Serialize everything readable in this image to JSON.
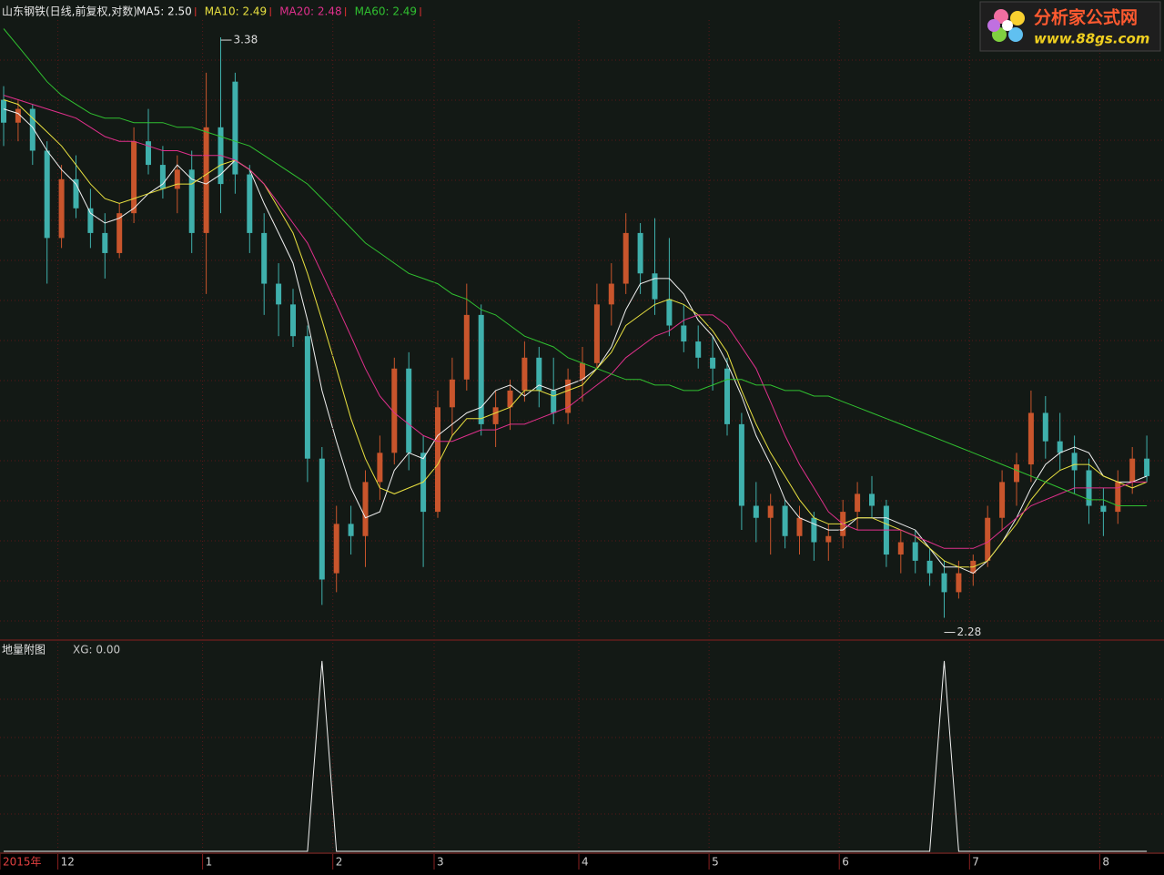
{
  "chart_data": [
    {
      "type": "candlestick",
      "title": "山东钢铁(日线,前复权,对数)",
      "log": true,
      "ylim": [
        2.25,
        3.42
      ],
      "up_color": "#c8552c",
      "down_color": "#3fb0ac",
      "categories": [
        "2015年",
        null,
        null,
        null,
        "12",
        null,
        null,
        null,
        null,
        null,
        null,
        null,
        null,
        null,
        "1",
        null,
        null,
        null,
        null,
        null,
        null,
        null,
        null,
        "2",
        null,
        null,
        null,
        null,
        null,
        null,
        "3",
        null,
        null,
        null,
        null,
        null,
        null,
        null,
        null,
        null,
        "4",
        null,
        null,
        null,
        null,
        null,
        null,
        null,
        null,
        "5",
        null,
        null,
        null,
        null,
        null,
        null,
        null,
        null,
        "6",
        null,
        null,
        null,
        null,
        null,
        null,
        null,
        null,
        "7",
        null,
        null,
        null,
        null,
        null,
        null,
        null,
        null,
        "8",
        null,
        null,
        null
      ],
      "open": [
        3.24,
        3.19,
        3.22,
        3.13,
        2.95,
        3.07,
        3.01,
        2.96,
        2.92,
        3.0,
        3.15,
        3.1,
        3.05,
        3.09,
        2.96,
        3.18,
        3.28,
        3.08,
        2.96,
        2.86,
        2.82,
        2.76,
        2.54,
        2.35,
        2.43,
        2.41,
        2.5,
        2.55,
        2.7,
        2.55,
        2.45,
        2.63,
        2.68,
        2.8,
        2.6,
        2.63,
        2.66,
        2.72,
        2.66,
        2.62,
        2.68,
        2.71,
        2.82,
        2.86,
        2.96,
        2.88,
        2.83,
        2.78,
        2.75,
        2.72,
        2.7,
        2.6,
        2.46,
        2.44,
        2.46,
        2.41,
        2.44,
        2.4,
        2.41,
        2.45,
        2.48,
        2.46,
        2.38,
        2.4,
        2.37,
        2.35,
        2.32,
        2.35,
        2.37,
        2.44,
        2.5,
        2.53,
        2.62,
        2.57,
        2.55,
        2.52,
        2.46,
        2.45,
        2.5,
        2.54
      ],
      "high": [
        3.27,
        3.24,
        3.23,
        3.15,
        3.1,
        3.12,
        3.05,
        3.0,
        3.02,
        3.18,
        3.22,
        3.14,
        3.12,
        3.13,
        3.3,
        3.38,
        3.3,
        3.1,
        3.0,
        2.9,
        2.85,
        2.78,
        2.56,
        2.46,
        2.46,
        2.52,
        2.58,
        2.72,
        2.73,
        2.58,
        2.66,
        2.72,
        2.86,
        2.82,
        2.66,
        2.68,
        2.75,
        2.74,
        2.72,
        2.7,
        2.74,
        2.86,
        2.9,
        3.0,
        2.98,
        2.99,
        2.95,
        2.82,
        2.78,
        2.76,
        2.72,
        2.62,
        2.5,
        2.48,
        2.47,
        2.46,
        2.45,
        2.43,
        2.47,
        2.5,
        2.51,
        2.47,
        2.42,
        2.42,
        2.39,
        2.37,
        2.37,
        2.38,
        2.46,
        2.52,
        2.55,
        2.66,
        2.65,
        2.62,
        2.58,
        2.54,
        2.49,
        2.52,
        2.56,
        2.58
      ],
      "low": [
        3.14,
        3.15,
        3.1,
        2.86,
        2.93,
        2.99,
        2.93,
        2.87,
        2.91,
        2.98,
        3.08,
        3.03,
        3.0,
        2.92,
        2.84,
        3.0,
        3.04,
        2.92,
        2.8,
        2.76,
        2.74,
        2.5,
        2.3,
        2.32,
        2.38,
        2.36,
        2.47,
        2.53,
        2.52,
        2.36,
        2.44,
        2.58,
        2.66,
        2.58,
        2.56,
        2.59,
        2.64,
        2.63,
        2.6,
        2.6,
        2.64,
        2.7,
        2.78,
        2.84,
        2.84,
        2.8,
        2.76,
        2.73,
        2.7,
        2.66,
        2.58,
        2.42,
        2.4,
        2.38,
        2.39,
        2.38,
        2.37,
        2.37,
        2.39,
        2.42,
        2.44,
        2.36,
        2.35,
        2.35,
        2.33,
        2.28,
        2.31,
        2.33,
        2.36,
        2.42,
        2.46,
        2.5,
        2.54,
        2.52,
        2.48,
        2.43,
        2.41,
        2.43,
        2.48,
        2.5
      ],
      "close": [
        3.19,
        3.22,
        3.13,
        2.95,
        3.07,
        3.01,
        2.96,
        2.92,
        3.0,
        3.15,
        3.1,
        3.05,
        3.09,
        2.96,
        3.18,
        3.06,
        3.08,
        2.96,
        2.86,
        2.82,
        2.76,
        2.54,
        2.34,
        2.43,
        2.41,
        2.5,
        2.55,
        2.7,
        2.55,
        2.45,
        2.63,
        2.68,
        2.8,
        2.6,
        2.63,
        2.66,
        2.72,
        2.66,
        2.62,
        2.68,
        2.71,
        2.82,
        2.86,
        2.96,
        2.88,
        2.83,
        2.78,
        2.75,
        2.72,
        2.7,
        2.6,
        2.46,
        2.44,
        2.46,
        2.41,
        2.44,
        2.4,
        2.41,
        2.45,
        2.48,
        2.46,
        2.38,
        2.4,
        2.37,
        2.35,
        2.32,
        2.35,
        2.37,
        2.44,
        2.5,
        2.53,
        2.62,
        2.57,
        2.55,
        2.52,
        2.46,
        2.45,
        2.5,
        2.54,
        2.51
      ],
      "series": [
        {
          "name": "MA5: 2.50",
          "color": "#f0f0f0",
          "values": [
            3.22,
            3.21,
            3.18,
            3.13,
            3.09,
            3.06,
            3.0,
            2.98,
            2.99,
            3.01,
            3.04,
            3.06,
            3.1,
            3.07,
            3.06,
            3.08,
            3.11,
            3.09,
            3.02,
            2.96,
            2.9,
            2.79,
            2.66,
            2.57,
            2.49,
            2.44,
            2.45,
            2.52,
            2.55,
            2.54,
            2.58,
            2.6,
            2.62,
            2.63,
            2.66,
            2.67,
            2.65,
            2.67,
            2.66,
            2.67,
            2.68,
            2.7,
            2.74,
            2.81,
            2.86,
            2.87,
            2.87,
            2.84,
            2.79,
            2.76,
            2.71,
            2.65,
            2.58,
            2.53,
            2.47,
            2.44,
            2.43,
            2.42,
            2.42,
            2.44,
            2.44,
            2.44,
            2.43,
            2.42,
            2.39,
            2.36,
            2.36,
            2.35,
            2.37,
            2.4,
            2.44,
            2.49,
            2.53,
            2.55,
            2.56,
            2.55,
            2.51,
            2.5,
            2.5,
            2.51
          ]
        },
        {
          "name": "MA10: 2.49",
          "color": "#e8e040",
          "values": [
            3.24,
            3.23,
            3.2,
            3.17,
            3.14,
            3.1,
            3.06,
            3.03,
            3.02,
            3.03,
            3.04,
            3.05,
            3.06,
            3.06,
            3.08,
            3.1,
            3.11,
            3.09,
            3.06,
            3.01,
            2.96,
            2.88,
            2.79,
            2.7,
            2.61,
            2.54,
            2.49,
            2.48,
            2.49,
            2.5,
            2.53,
            2.58,
            2.61,
            2.61,
            2.62,
            2.63,
            2.66,
            2.66,
            2.65,
            2.66,
            2.67,
            2.7,
            2.73,
            2.78,
            2.8,
            2.82,
            2.83,
            2.82,
            2.8,
            2.77,
            2.73,
            2.66,
            2.6,
            2.55,
            2.51,
            2.47,
            2.44,
            2.43,
            2.43,
            2.44,
            2.44,
            2.43,
            2.42,
            2.41,
            2.39,
            2.37,
            2.36,
            2.36,
            2.37,
            2.4,
            2.43,
            2.47,
            2.5,
            2.52,
            2.53,
            2.53,
            2.51,
            2.5,
            2.49,
            2.5
          ]
        },
        {
          "name": "MA20: 2.48",
          "color": "#e0308c",
          "values": [
            3.25,
            3.24,
            3.23,
            3.22,
            3.21,
            3.2,
            3.18,
            3.16,
            3.15,
            3.15,
            3.14,
            3.13,
            3.13,
            3.12,
            3.12,
            3.12,
            3.11,
            3.09,
            3.06,
            3.02,
            2.98,
            2.94,
            2.88,
            2.82,
            2.76,
            2.7,
            2.65,
            2.62,
            2.6,
            2.58,
            2.57,
            2.57,
            2.58,
            2.59,
            2.59,
            2.6,
            2.6,
            2.61,
            2.62,
            2.63,
            2.65,
            2.67,
            2.69,
            2.72,
            2.74,
            2.76,
            2.77,
            2.79,
            2.8,
            2.8,
            2.78,
            2.74,
            2.7,
            2.64,
            2.58,
            2.53,
            2.49,
            2.45,
            2.43,
            2.42,
            2.42,
            2.42,
            2.42,
            2.41,
            2.4,
            2.39,
            2.39,
            2.39,
            2.4,
            2.42,
            2.44,
            2.46,
            2.47,
            2.48,
            2.49,
            2.49,
            2.49,
            2.49,
            2.5,
            2.5
          ]
        },
        {
          "name": "MA60: 2.49",
          "color": "#30c030",
          "values": [
            3.4,
            3.36,
            3.32,
            3.28,
            3.25,
            3.23,
            3.21,
            3.2,
            3.2,
            3.19,
            3.19,
            3.19,
            3.18,
            3.18,
            3.17,
            3.16,
            3.15,
            3.14,
            3.12,
            3.1,
            3.08,
            3.06,
            3.03,
            3.0,
            2.97,
            2.94,
            2.92,
            2.9,
            2.88,
            2.87,
            2.86,
            2.84,
            2.83,
            2.81,
            2.8,
            2.78,
            2.76,
            2.75,
            2.74,
            2.72,
            2.71,
            2.7,
            2.69,
            2.68,
            2.68,
            2.67,
            2.67,
            2.66,
            2.66,
            2.67,
            2.68,
            2.68,
            2.67,
            2.67,
            2.66,
            2.66,
            2.65,
            2.65,
            2.64,
            2.63,
            2.62,
            2.61,
            2.6,
            2.59,
            2.58,
            2.57,
            2.56,
            2.55,
            2.54,
            2.53,
            2.52,
            2.51,
            2.5,
            2.49,
            2.48,
            2.47,
            2.47,
            2.46,
            2.46,
            2.46
          ]
        }
      ],
      "annotations": [
        {
          "value": 3.38,
          "index": 15
        },
        {
          "value": 2.28,
          "index": 65
        }
      ]
    },
    {
      "type": "line",
      "title": "地量附图",
      "ylim": [
        0,
        1.1
      ],
      "series": [
        {
          "name": "XG: 0.00",
          "color": "#f0f0f0",
          "values": [
            0,
            0,
            0,
            0,
            0,
            0,
            0,
            0,
            0,
            0,
            0,
            0,
            0,
            0,
            0,
            0,
            0,
            0,
            0,
            0,
            0,
            0,
            1,
            0,
            0,
            0,
            0,
            0,
            0,
            0,
            0,
            0,
            0,
            0,
            0,
            0,
            0,
            0,
            0,
            0,
            0,
            0,
            0,
            0,
            0,
            0,
            0,
            0,
            0,
            0,
            0,
            0,
            0,
            0,
            0,
            0,
            0,
            0,
            0,
            0,
            0,
            0,
            0,
            0,
            0,
            1,
            0,
            0,
            0,
            0,
            0,
            0,
            0,
            0,
            0,
            0,
            0,
            0,
            0,
            0
          ]
        }
      ]
    }
  ],
  "watermark": {
    "name": "分析家公式网",
    "url": "www.88gs.com"
  }
}
